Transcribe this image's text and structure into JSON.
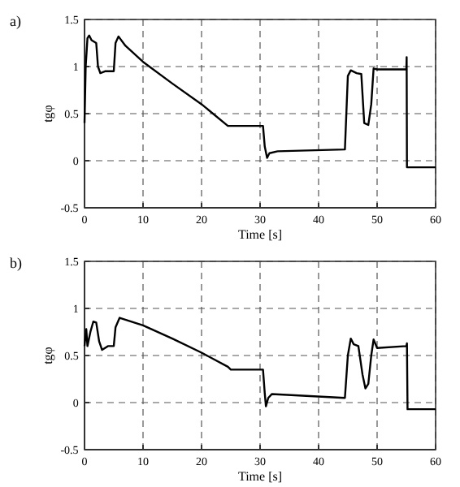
{
  "chart_data": [
    {
      "type": "line",
      "title": "a)",
      "xlabel": "Time [s]",
      "ylabel": "tgφ",
      "xlim": [
        0,
        60
      ],
      "ylim": [
        -0.5,
        1.5
      ],
      "xticks": [
        0,
        10,
        20,
        30,
        40,
        50,
        60
      ],
      "yticks": [
        -0.5,
        0,
        0.5,
        1,
        1.5
      ],
      "grid": true,
      "line_style": "solid",
      "marker": "none",
      "series": [
        {
          "color": "#000000",
          "x": [
            0,
            0.2,
            0.5,
            0.8,
            1.2,
            2,
            2.3,
            2.7,
            3.5,
            5,
            5.3,
            5.8,
            7,
            10,
            15,
            20,
            24.5,
            30.5,
            30.8,
            31.2,
            31.6,
            33,
            44.5,
            45,
            45.5,
            46.5,
            47.3,
            47.8,
            48.5,
            49,
            49.4,
            50,
            55,
            55.05,
            55.1,
            60
          ],
          "values": [
            0.4,
            1.0,
            1.3,
            1.33,
            1.28,
            1.25,
            1.0,
            0.93,
            0.95,
            0.95,
            1.25,
            1.32,
            1.22,
            1.05,
            0.82,
            0.6,
            0.37,
            0.37,
            0.15,
            0.03,
            0.08,
            0.1,
            0.12,
            0.9,
            0.96,
            0.93,
            0.92,
            0.4,
            0.38,
            0.6,
            0.98,
            0.97,
            0.97,
            1.1,
            -0.07,
            -0.07
          ]
        }
      ]
    },
    {
      "type": "line",
      "title": "b)",
      "xlabel": "Time [s]",
      "ylabel": "tgφ",
      "xlim": [
        0,
        60
      ],
      "ylim": [
        -0.5,
        1.5
      ],
      "xticks": [
        0,
        10,
        20,
        30,
        40,
        50,
        60
      ],
      "yticks": [
        -0.5,
        0,
        0.5,
        1,
        1.5
      ],
      "grid": true,
      "line_style": "solid",
      "marker": "none",
      "series": [
        {
          "color": "#000000",
          "x": [
            0,
            0.3,
            0.5,
            1,
            1.5,
            2,
            2.5,
            3,
            4,
            5,
            5.3,
            6,
            10,
            15,
            20,
            24.5,
            25,
            30.5,
            30.8,
            31,
            31.4,
            32,
            44.5,
            45,
            45.5,
            46,
            46.8,
            47.5,
            48,
            48.5,
            49,
            49.4,
            50,
            55,
            55.1,
            55.2,
            60
          ],
          "values": [
            0.6,
            0.78,
            0.6,
            0.75,
            0.86,
            0.85,
            0.65,
            0.56,
            0.6,
            0.6,
            0.8,
            0.9,
            0.82,
            0.68,
            0.53,
            0.38,
            0.35,
            0.35,
            0.1,
            -0.04,
            0.05,
            0.09,
            0.05,
            0.5,
            0.68,
            0.62,
            0.6,
            0.3,
            0.15,
            0.2,
            0.5,
            0.67,
            0.58,
            0.6,
            0.63,
            -0.07,
            -0.07
          ]
        }
      ]
    }
  ]
}
